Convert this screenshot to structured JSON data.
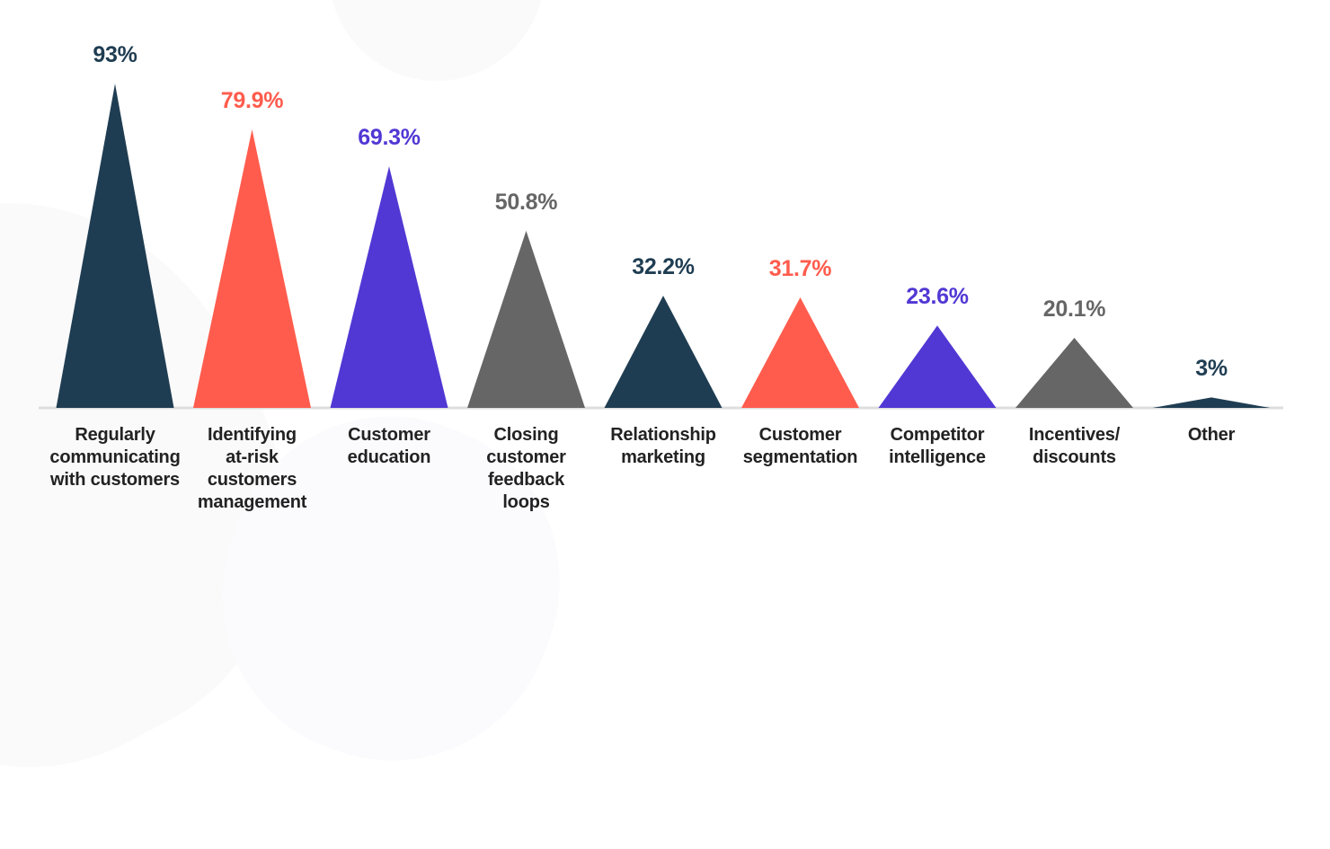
{
  "chart_data": {
    "type": "bar",
    "style": "triangle",
    "title": "",
    "xlabel": "",
    "ylabel": "",
    "ylim": [
      0,
      100
    ],
    "grid": false,
    "legend": false,
    "categories": [
      "Regularly communicating with customers",
      "Identifying at-risk customers management",
      "Customer education",
      "Closing customer feedback loops",
      "Relationship marketing",
      "Customer segmentation",
      "Competitor intelligence",
      "Incentives/ discounts",
      "Other"
    ],
    "values": [
      93,
      79.9,
      69.3,
      50.8,
      32.2,
      31.7,
      23.6,
      20.1,
      3
    ],
    "value_labels": [
      "93%",
      "79.9%",
      "69.3%",
      "50.8%",
      "32.2%",
      "31.7%",
      "23.6%",
      "20.1%",
      "3%"
    ],
    "colors": [
      "#1F3D52",
      "#FF5C4D",
      "#5138D4",
      "#666666",
      "#1F3D52",
      "#FF5C4D",
      "#5138D4",
      "#666666",
      "#1F3D52"
    ]
  },
  "items": [
    {
      "value_label": "93%",
      "lines": [
        "Regularly",
        "communicating",
        "with customers"
      ]
    },
    {
      "value_label": "79.9%",
      "lines": [
        "Identifying",
        "at-risk",
        "customers",
        "management"
      ]
    },
    {
      "value_label": "69.3%",
      "lines": [
        "Customer",
        "education"
      ]
    },
    {
      "value_label": "50.8%",
      "lines": [
        "Closing",
        "customer",
        "feedback",
        "loops"
      ]
    },
    {
      "value_label": "32.2%",
      "lines": [
        "Relationship",
        "marketing"
      ]
    },
    {
      "value_label": "31.7%",
      "lines": [
        "Customer",
        "segmentation"
      ]
    },
    {
      "value_label": "23.6%",
      "lines": [
        "Competitor",
        "intelligence"
      ]
    },
    {
      "value_label": "20.1%",
      "lines": [
        "Incentives/",
        "discounts"
      ]
    },
    {
      "value_label": "3%",
      "lines": [
        "Other"
      ]
    }
  ],
  "colors": {
    "navy": "#1F3D52",
    "coral": "#FF5C4D",
    "purple": "#5138D4",
    "gray": "#666666",
    "label_text": "#222222",
    "baseline": "#DDDDDD"
  }
}
